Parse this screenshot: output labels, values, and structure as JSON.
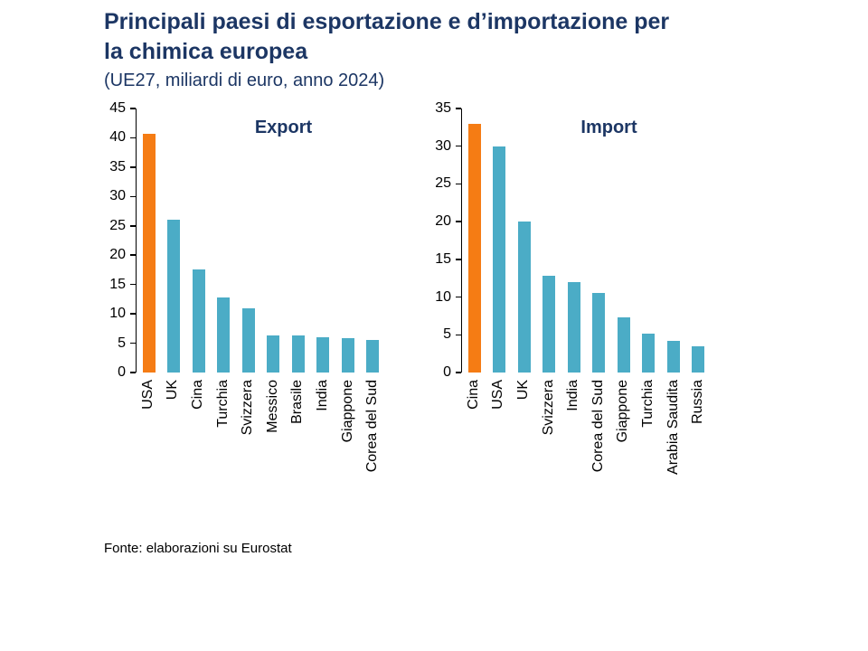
{
  "title": "Principali paesi di esportazione e d’importazione per la chimica europea",
  "subtitle": "(UE27, miliardi di euro, anno 2024)",
  "source": "Fonte: elaborazioni su Eurostat",
  "colors": {
    "title_navy": "#1C3664",
    "bar_teal": "#4BACC6",
    "highlight_orange": "#F57C14"
  },
  "chart_data": [
    {
      "type": "bar",
      "title": "Export",
      "categories": [
        "USA",
        "UK",
        "Cina",
        "Turchia",
        "Svizzera",
        "Messico",
        "Brasile",
        "India",
        "Giappone",
        "Corea del Sud"
      ],
      "values": [
        40.7,
        26,
        17.5,
        12.8,
        11,
        6.3,
        6.3,
        6,
        5.8,
        5.5
      ],
      "ylim": [
        0,
        45
      ],
      "ytick_step": 5,
      "ylabel": "",
      "xlabel": "",
      "grid": false,
      "legend": false,
      "bar_color": "#4BACC6",
      "highlight_index": 0,
      "highlight_color": "#F57C14"
    },
    {
      "type": "bar",
      "title": "Import",
      "categories": [
        "Cina",
        "USA",
        "UK",
        "Svizzera",
        "India",
        "Corea del Sud",
        "Giappone",
        "Turchia",
        "Arabia Saudita",
        "Russia"
      ],
      "values": [
        33,
        30,
        20,
        12.8,
        12,
        10.5,
        7.3,
        5.2,
        4.2,
        3.5
      ],
      "ylim": [
        0,
        35
      ],
      "ytick_step": 5,
      "ylabel": "",
      "xlabel": "",
      "grid": false,
      "legend": false,
      "bar_color": "#4BACC6",
      "highlight_index": 0,
      "highlight_color": "#F57C14"
    }
  ]
}
